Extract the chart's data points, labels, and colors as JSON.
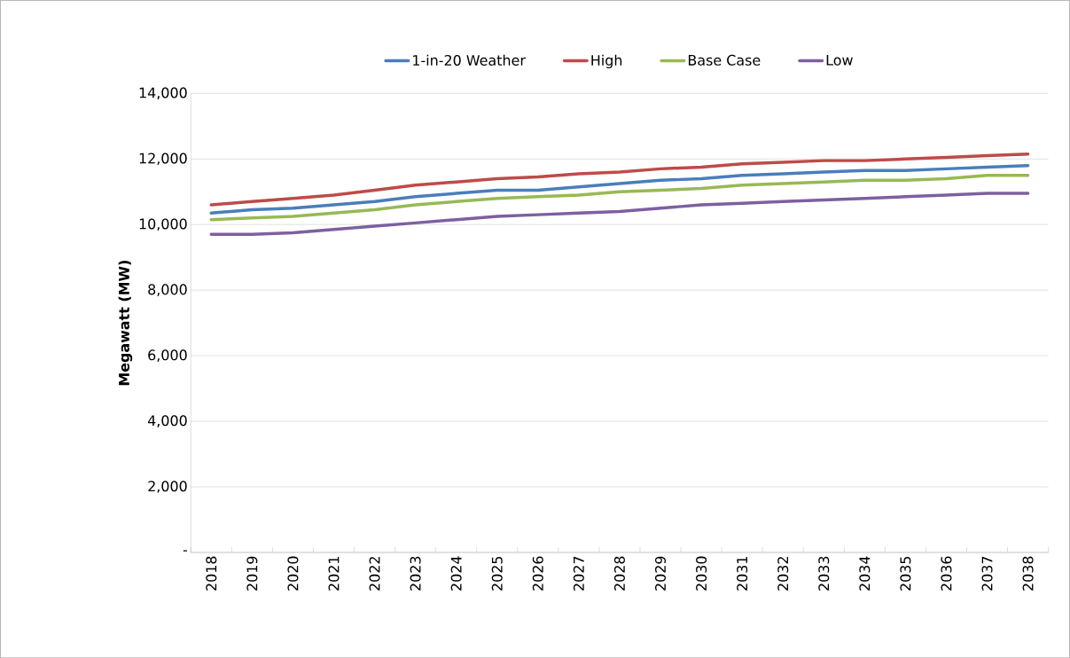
{
  "chart_data": {
    "type": "line",
    "ylabel": "Megawatt (MW)",
    "categories": [
      "2018",
      "2019",
      "2020",
      "2021",
      "2022",
      "2023",
      "2024",
      "2025",
      "2026",
      "2027",
      "2028",
      "2029",
      "2030",
      "2031",
      "2032",
      "2033",
      "2034",
      "2035",
      "2036",
      "2037",
      "2038"
    ],
    "series": [
      {
        "name": "1-in-20 Weather",
        "color": "#4a7ebb",
        "values": [
          10350,
          10450,
          10500,
          10600,
          10700,
          10850,
          10950,
          11050,
          11050,
          11150,
          11250,
          11350,
          11400,
          11500,
          11550,
          11600,
          11650,
          11650,
          11700,
          11750,
          11800
        ]
      },
      {
        "name": "High",
        "color": "#be4b48",
        "values": [
          10600,
          10700,
          10800,
          10900,
          11050,
          11200,
          11300,
          11400,
          11450,
          11550,
          11600,
          11700,
          11750,
          11850,
          11900,
          11950,
          11950,
          12000,
          12050,
          12100,
          12150
        ]
      },
      {
        "name": "Base Case",
        "color": "#98b954",
        "values": [
          10150,
          10200,
          10250,
          10350,
          10450,
          10600,
          10700,
          10800,
          10850,
          10900,
          11000,
          11050,
          11100,
          11200,
          11250,
          11300,
          11350,
          11350,
          11400,
          11500,
          11500
        ]
      },
      {
        "name": "Low",
        "color": "#7d60a0",
        "values": [
          9700,
          9700,
          9750,
          9850,
          9950,
          10050,
          10150,
          10250,
          10300,
          10350,
          10400,
          10500,
          10600,
          10650,
          10700,
          10750,
          10800,
          10850,
          10900,
          10950,
          10950
        ]
      }
    ],
    "ylim": [
      0,
      14000
    ],
    "yticks": [
      {
        "value": 0,
        "label": "-"
      },
      {
        "value": 2000,
        "label": "2,000"
      },
      {
        "value": 4000,
        "label": "4,000"
      },
      {
        "value": 6000,
        "label": "6,000"
      },
      {
        "value": 8000,
        "label": "8,000"
      },
      {
        "value": 10000,
        "label": "10,000"
      },
      {
        "value": 12000,
        "label": "12,000"
      },
      {
        "value": 14000,
        "label": "14,000"
      }
    ],
    "grid": "y",
    "legend": "top",
    "marker": "none",
    "line_style": "solid"
  }
}
